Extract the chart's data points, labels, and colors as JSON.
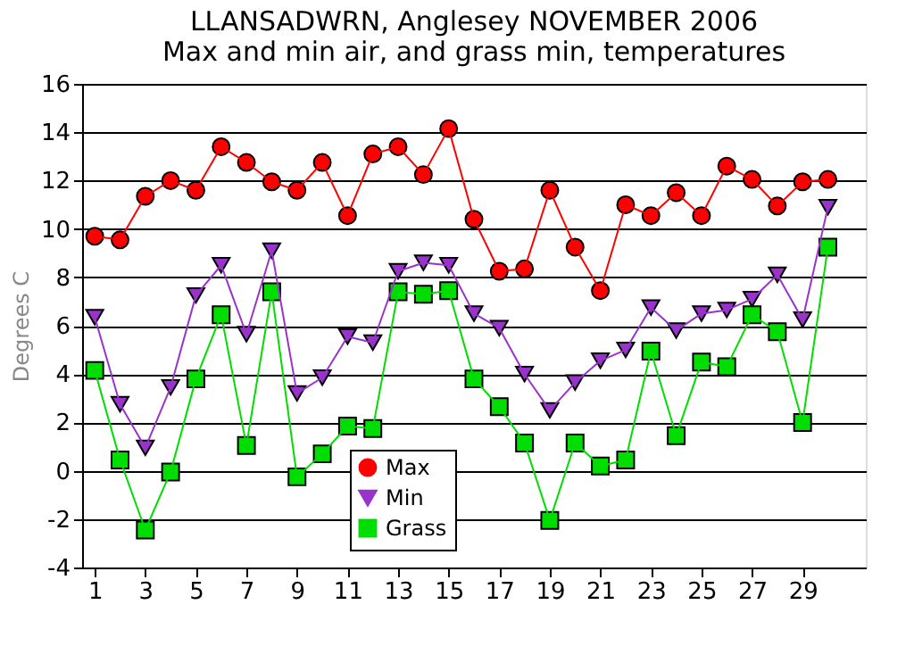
{
  "chart_data": {
    "type": "line",
    "title": [
      "LLANSADWRN, Anglesey NOVEMBER 2006",
      "Max and min air, and grass min, temperatures"
    ],
    "ylabel": "Degrees C",
    "x": [
      1,
      2,
      3,
      4,
      5,
      6,
      7,
      8,
      9,
      10,
      11,
      12,
      13,
      14,
      15,
      16,
      17,
      18,
      19,
      20,
      21,
      22,
      23,
      24,
      25,
      26,
      27,
      28,
      29,
      30
    ],
    "series": [
      {
        "name": "Max",
        "color": "#ff0000",
        "marker": "circle",
        "values": [
          9.7,
          9.55,
          11.35,
          12.0,
          11.6,
          13.4,
          12.75,
          11.95,
          11.6,
          12.75,
          10.55,
          13.1,
          13.4,
          12.25,
          14.15,
          10.4,
          8.25,
          8.35,
          11.6,
          9.25,
          7.45,
          11.0,
          10.55,
          11.5,
          10.55,
          12.6,
          12.05,
          10.95,
          11.95,
          12.05
        ]
      },
      {
        "name": "Min",
        "color": "#9933cc",
        "marker": "triangle",
        "values": [
          6.35,
          2.75,
          0.95,
          3.45,
          7.25,
          8.5,
          5.65,
          9.1,
          3.2,
          3.85,
          5.55,
          5.3,
          8.25,
          8.6,
          8.5,
          6.5,
          5.9,
          4.0,
          2.5,
          3.65,
          4.55,
          5.0,
          6.75,
          5.8,
          6.5,
          6.65,
          7.1,
          8.1,
          6.25,
          10.9
        ]
      },
      {
        "name": "Grass",
        "color": "#00dd00",
        "marker": "square",
        "values": [
          4.15,
          0.45,
          -2.45,
          -0.05,
          3.8,
          6.45,
          1.05,
          7.4,
          -0.25,
          0.7,
          1.85,
          1.75,
          7.4,
          7.3,
          7.45,
          3.8,
          2.65,
          1.15,
          -2.05,
          1.15,
          0.2,
          0.45,
          4.95,
          1.45,
          4.5,
          4.3,
          6.45,
          5.75,
          2.0,
          9.25
        ]
      }
    ],
    "xlim": [
      0.5,
      31.5
    ],
    "xticks": [
      1,
      3,
      5,
      7,
      9,
      11,
      13,
      15,
      17,
      19,
      21,
      23,
      25,
      27,
      29
    ],
    "ylim": [
      -4,
      16
    ],
    "yticks": [
      -4,
      -2,
      0,
      2,
      4,
      6,
      8,
      10,
      12,
      14,
      16
    ],
    "grid": "y",
    "legend": "bottom",
    "line_style": "solid"
  }
}
